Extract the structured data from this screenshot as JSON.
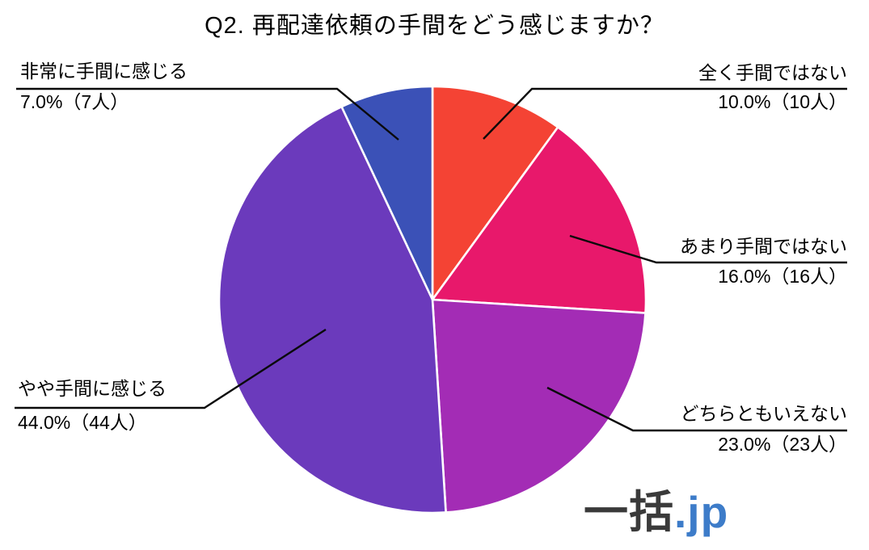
{
  "title": "Q2. 再配達依頼の手間をどう感じますか？",
  "chart_data": {
    "type": "pie",
    "title": "Q2. 再配達依頼の手間をどう感じますか？",
    "start_angle_deg": 0,
    "direction": "clockwise",
    "total_count": 100,
    "legend": "none",
    "labels_position": "outside-with-leader-lines",
    "separator_color": "#ffffff",
    "leader_line_color": "#0a0a0a",
    "segments": [
      {
        "label": "全く手間ではない",
        "percent": 10.0,
        "count": 10,
        "value_text": "10.0%（10人）",
        "color": "#F44334"
      },
      {
        "label": "あまり手間ではない",
        "percent": 16.0,
        "count": 16,
        "value_text": "16.0%（16人）",
        "color": "#E8186B"
      },
      {
        "label": "どちらともいえない",
        "percent": 23.0,
        "count": 23,
        "value_text": "23.0%（23人）",
        "color": "#A32CB5"
      },
      {
        "label": "やや手間に感じる",
        "percent": 44.0,
        "count": 44,
        "value_text": "44.0%（44人）",
        "color": "#6B3ABC"
      },
      {
        "label": "非常に手間に感じる",
        "percent": 7.0,
        "count": 7,
        "value_text": "7.0%（7人）",
        "color": "#3B51B7"
      }
    ]
  },
  "watermark": {
    "brand": "一括",
    "domain": ".jp",
    "brand_color": "#3a3a3a",
    "domain_color": "#3d7cc9"
  }
}
